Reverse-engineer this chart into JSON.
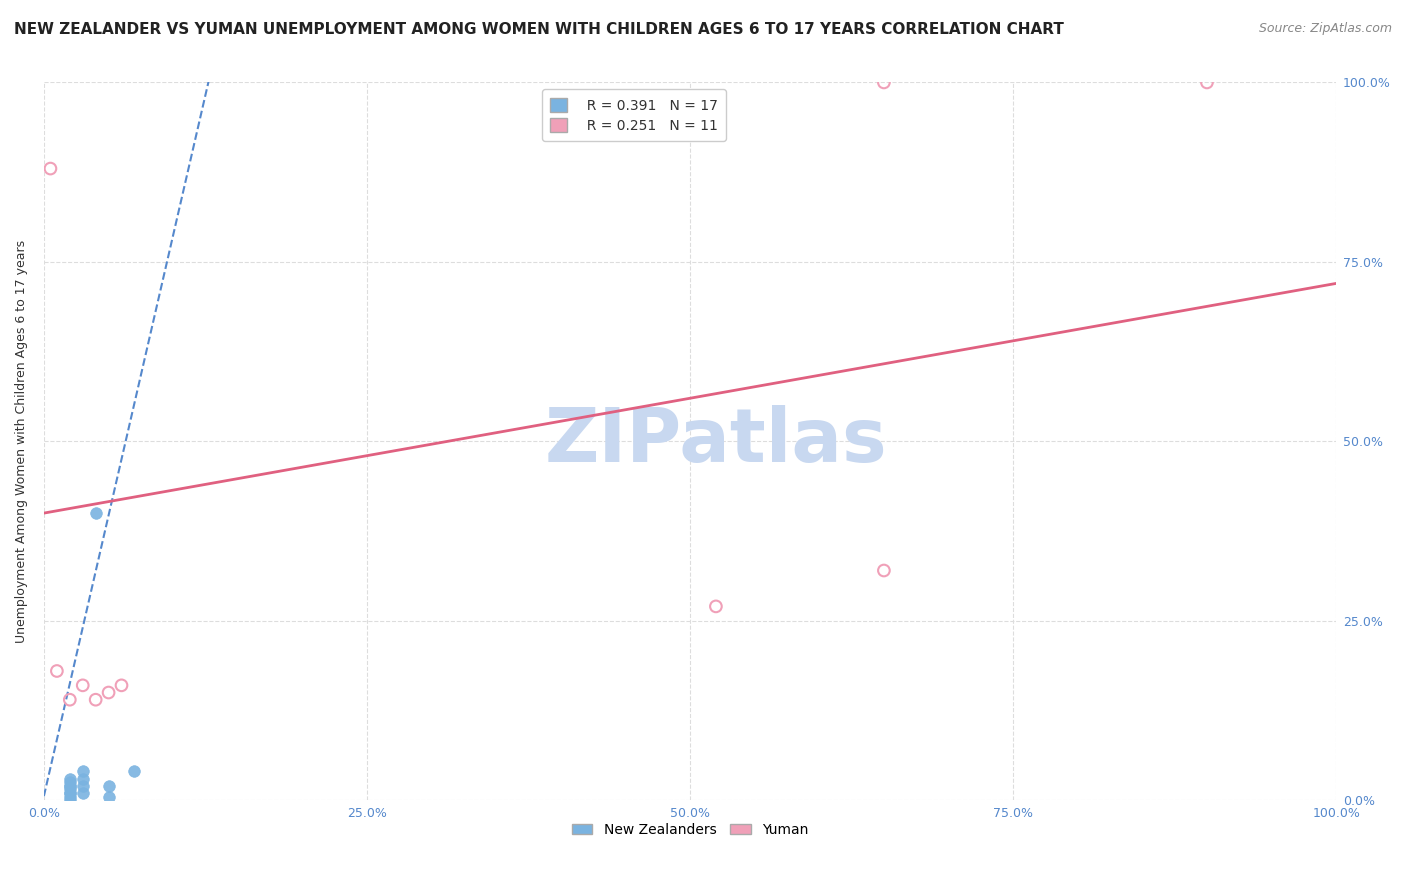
{
  "title": "NEW ZEALANDER VS YUMAN UNEMPLOYMENT AMONG WOMEN WITH CHILDREN AGES 6 TO 17 YEARS CORRELATION CHART",
  "source": "Source: ZipAtlas.com",
  "ylabel": "Unemployment Among Women with Children Ages 6 to 17 years",
  "xlim": [
    0,
    1.0
  ],
  "ylim": [
    0,
    1.0
  ],
  "xtick_labels": [
    "0.0%",
    "25.0%",
    "50.0%",
    "75.0%",
    "100.0%"
  ],
  "xtick_values": [
    0.0,
    0.25,
    0.5,
    0.75,
    1.0
  ],
  "ytick_values": [
    0.0,
    0.25,
    0.5,
    0.75,
    1.0
  ],
  "right_ytick_labels": [
    "0.0%",
    "25.0%",
    "50.0%",
    "75.0%",
    "100.0%"
  ],
  "background_color": "#ffffff",
  "watermark_text": "ZIPatlas",
  "watermark_color": "#c8d8f0",
  "legend_r1": "R = 0.391",
  "legend_n1": "N = 17",
  "legend_r2": "R = 0.251",
  "legend_n2": "N = 11",
  "blue_color": "#7ab3e0",
  "pink_color": "#f0a0b8",
  "blue_line_color": "#5588cc",
  "pink_line_color": "#e06080",
  "grid_color": "#dddddd",
  "axis_label_color": "#5588cc",
  "blue_scatter_x": [
    0.02,
    0.02,
    0.02,
    0.02,
    0.02,
    0.02,
    0.02,
    0.02,
    0.02,
    0.03,
    0.03,
    0.03,
    0.03,
    0.04,
    0.05,
    0.05,
    0.07
  ],
  "blue_scatter_y": [
    0.0,
    0.005,
    0.01,
    0.01,
    0.015,
    0.02,
    0.02,
    0.025,
    0.03,
    0.01,
    0.02,
    0.03,
    0.04,
    0.4,
    0.005,
    0.02,
    0.04
  ],
  "pink_scatter_x": [
    0.005,
    0.01,
    0.02,
    0.03,
    0.04,
    0.05,
    0.06,
    0.52,
    0.65,
    0.65,
    0.9
  ],
  "pink_scatter_y": [
    0.88,
    0.18,
    0.14,
    0.16,
    0.14,
    0.15,
    0.16,
    0.27,
    1.0,
    0.32,
    1.0
  ],
  "blue_line_x": [
    -0.02,
    0.14
  ],
  "blue_line_y": [
    -0.15,
    1.1
  ],
  "pink_line_x": [
    0.0,
    1.0
  ],
  "pink_line_y": [
    0.4,
    0.72
  ],
  "title_fontsize": 11,
  "source_fontsize": 9,
  "ylabel_fontsize": 9,
  "tick_fontsize": 9,
  "legend_fontsize": 10
}
